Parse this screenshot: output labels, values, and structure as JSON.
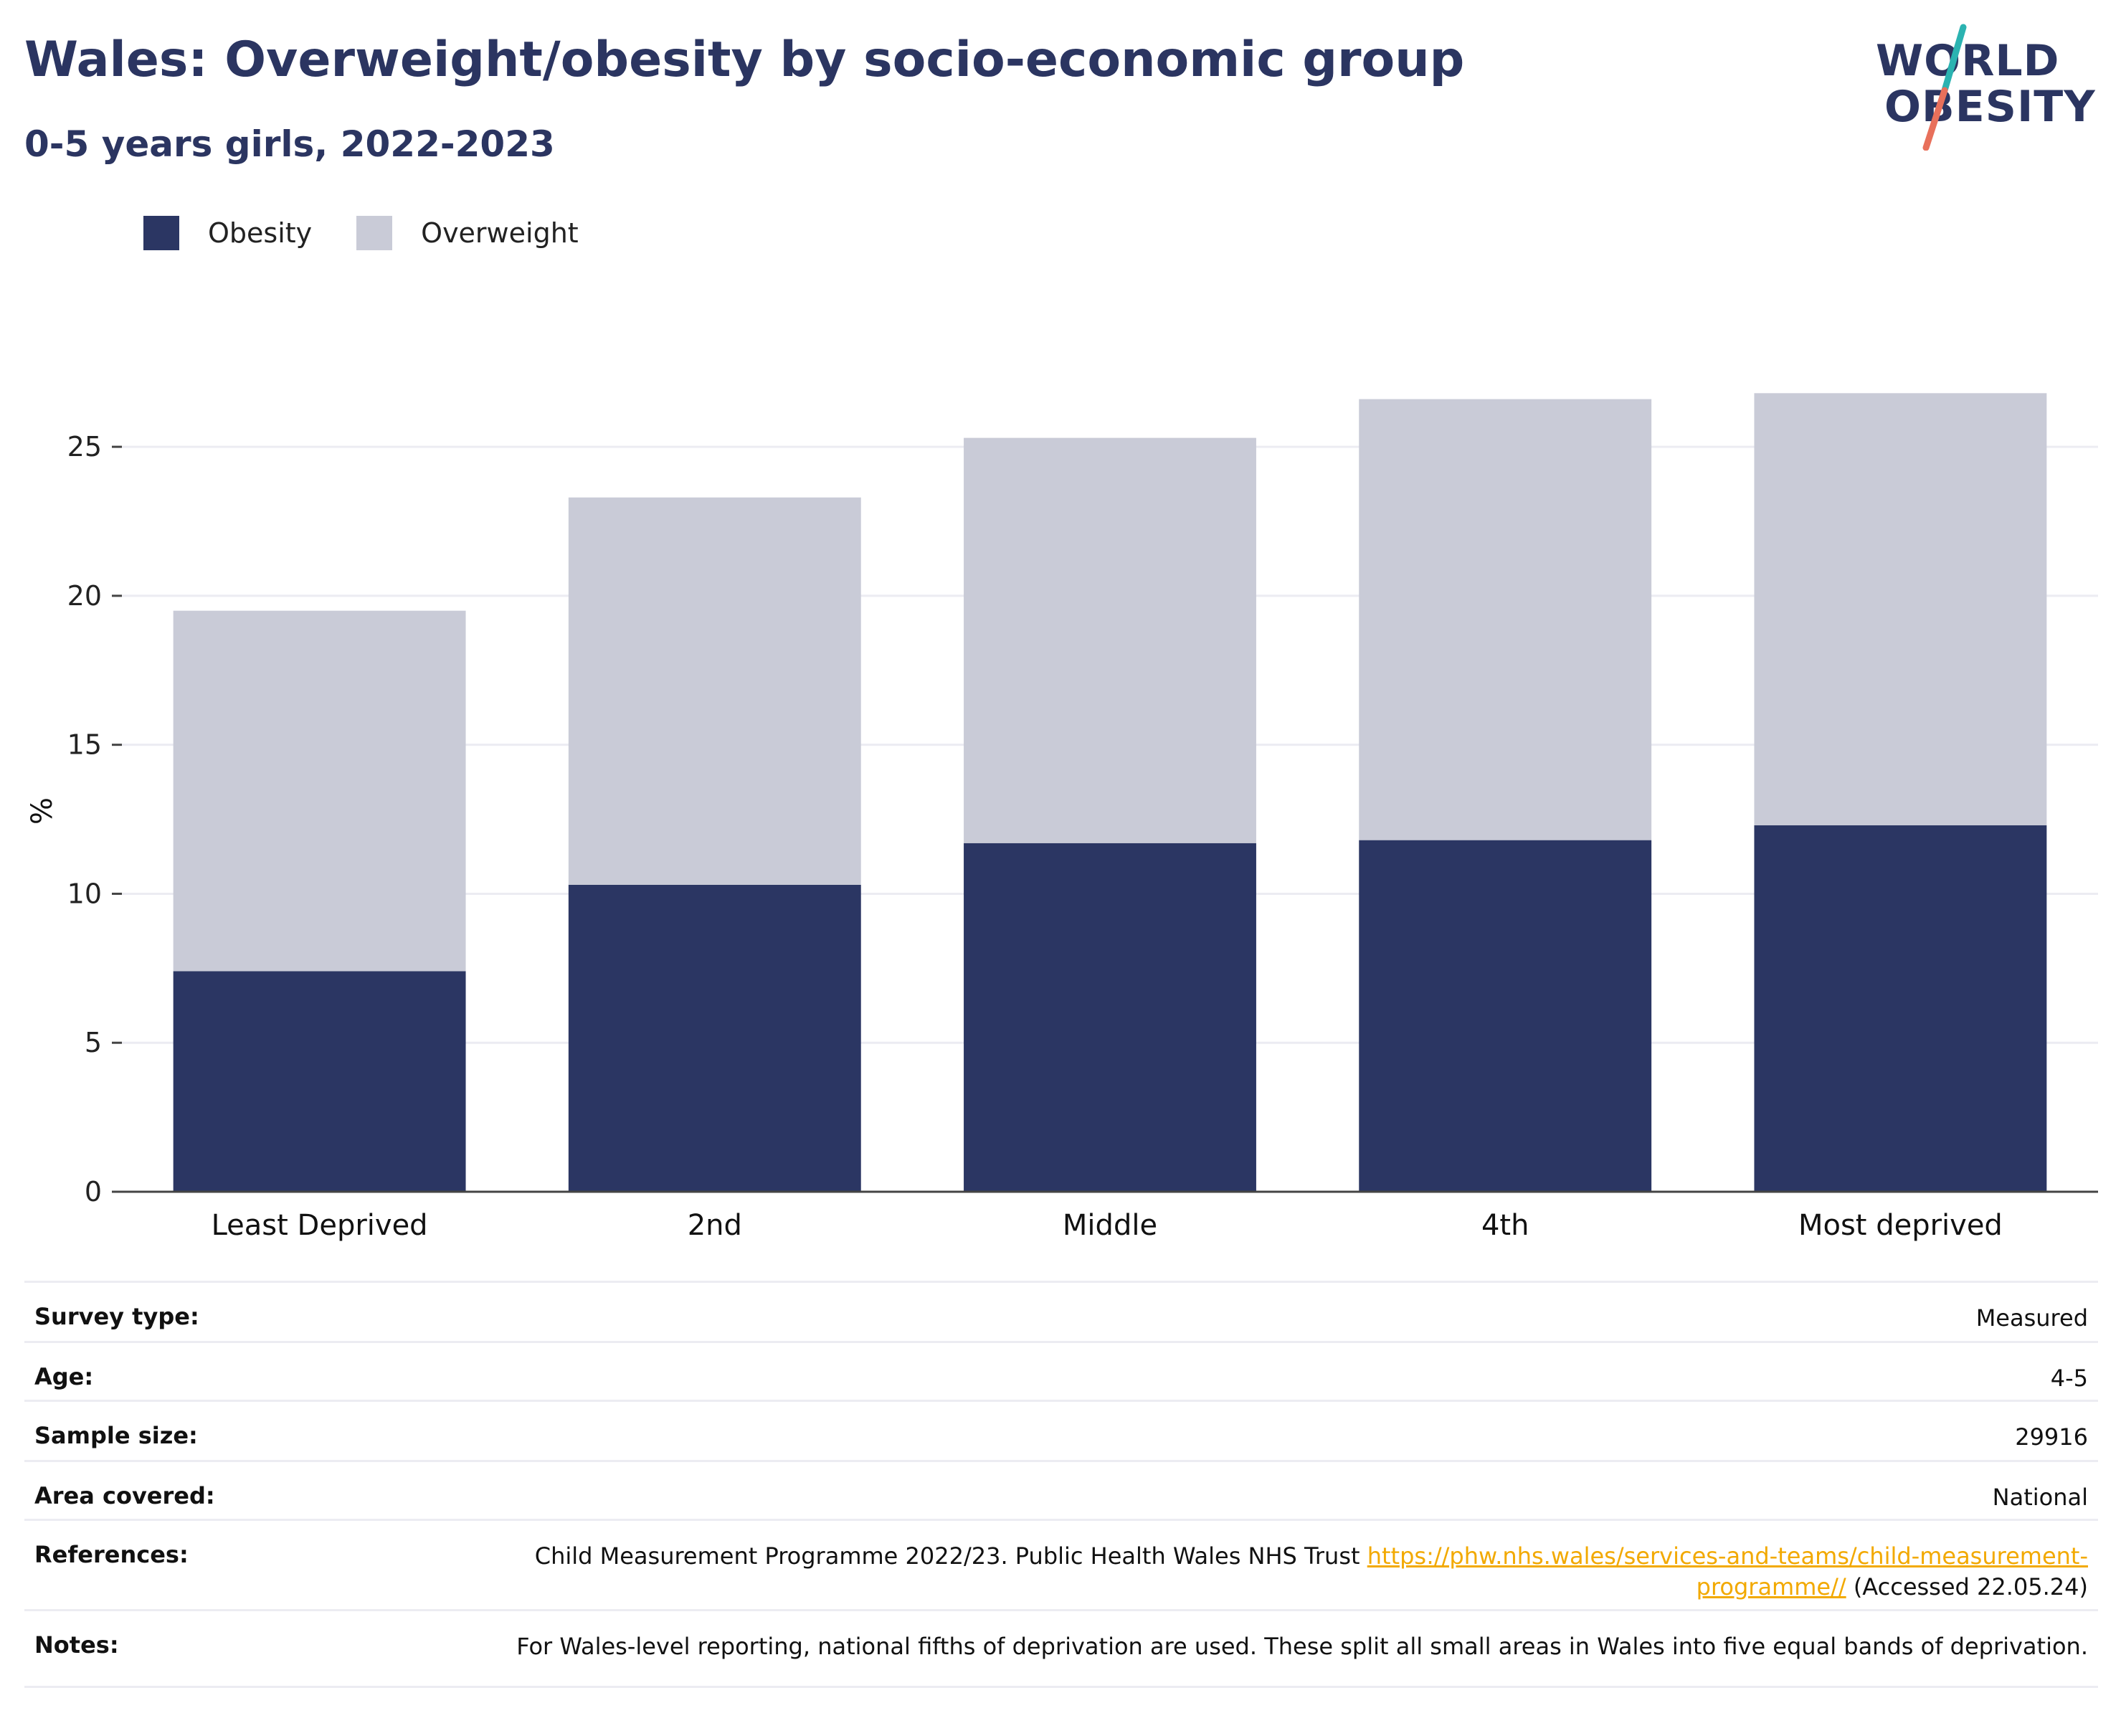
{
  "header": {
    "title": "Wales: Overweight/obesity by socio-economic group",
    "subtitle": "0-5 years girls, 2022-2023"
  },
  "logo": {
    "line1": "WORLD",
    "line2": "OBESITY",
    "slash_top_color": "#2bb3b1",
    "slash_bottom_color": "#e8705b"
  },
  "colors": {
    "obesity": "#2b3663",
    "overweight": "#c9cbd7",
    "grid": "#ececf2",
    "axis": "#444444"
  },
  "chart_data": {
    "type": "bar",
    "stacked": true,
    "categories": [
      "Least Deprived",
      "2nd",
      "Middle",
      "4th",
      "Most deprived"
    ],
    "series": [
      {
        "name": "Obesity",
        "values": [
          7.4,
          10.3,
          11.7,
          11.8,
          12.3
        ]
      },
      {
        "name": "Overweight",
        "values": [
          12.1,
          13.0,
          13.6,
          14.8,
          14.5
        ]
      }
    ],
    "ylabel": "%",
    "ylim": [
      0,
      27
    ],
    "yticks": [
      0,
      5,
      10,
      15,
      20,
      25
    ],
    "grid": true,
    "legend_position": "top-left"
  },
  "meta": {
    "survey_type": {
      "label": "Survey type:",
      "value": "Measured"
    },
    "age": {
      "label": "Age:",
      "value": "4-5"
    },
    "sample_size": {
      "label": "Sample size:",
      "value": "29916"
    },
    "area": {
      "label": "Area covered:",
      "value": "National"
    },
    "references": {
      "label": "References:",
      "text": "Child Measurement Programme 2022/23. Public Health Wales NHS Trust ",
      "link": "https://phw.nhs.wales/services-and-teams/child-measurement-programme//",
      "suffix": " (Accessed 22.05.24)"
    },
    "notes": {
      "label": "Notes:",
      "value": "For Wales-level reporting, national fifths of deprivation are used. These split all small areas in Wales into five equal bands of deprivation."
    }
  }
}
